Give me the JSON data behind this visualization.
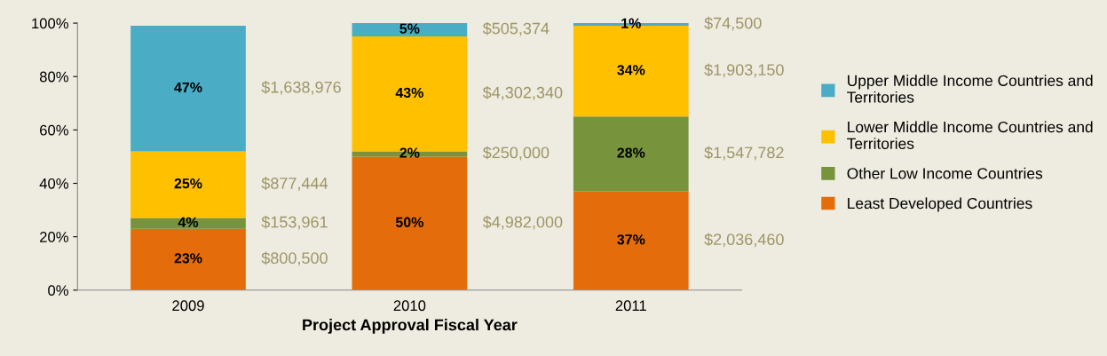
{
  "chart_data": {
    "type": "bar",
    "stacked": true,
    "xlabel": "Project Approval Fiscal Year",
    "categories": [
      "2009",
      "2010",
      "2011"
    ],
    "series": [
      {
        "name": "Least Developed Countries",
        "color": "#e46c0a",
        "values": [
          23,
          50,
          37
        ],
        "value_labels": [
          "23%",
          "50%",
          "37%"
        ]
      },
      {
        "name": "Other Low Income Countries",
        "color": "#77933c",
        "values": [
          4,
          2,
          28
        ],
        "value_labels": [
          "4%",
          "2%",
          "28%"
        ]
      },
      {
        "name": "Lower Middle Income Countries and Territories",
        "color": "#ffc000",
        "values": [
          25,
          43,
          34
        ],
        "value_labels": [
          "25%",
          "43%",
          "34%"
        ]
      },
      {
        "name": "Upper Middle Income Countries and Territories",
        "color": "#4bacc6",
        "values": [
          47,
          5,
          1
        ],
        "value_labels": [
          "47%",
          "5%",
          "1%"
        ]
      }
    ],
    "ylim": [
      0,
      100
    ],
    "yticks": [
      {
        "value": 0,
        "label": "0%"
      },
      {
        "value": 20,
        "label": "20%"
      },
      {
        "value": 40,
        "label": "40%"
      },
      {
        "value": 60,
        "label": "60%"
      },
      {
        "value": 80,
        "label": "80%"
      },
      {
        "value": 100,
        "label": "100%"
      }
    ],
    "grid": false,
    "legend": "right",
    "annotations": [
      "$800,500",
      "$153,961",
      "$877,444",
      "$1,638,976",
      "$4,982,000",
      "$250,000",
      "$4,302,340",
      "$505,374",
      "$2,036,460",
      "$1,547,782",
      "$1,903,150",
      "$74,500"
    ]
  }
}
